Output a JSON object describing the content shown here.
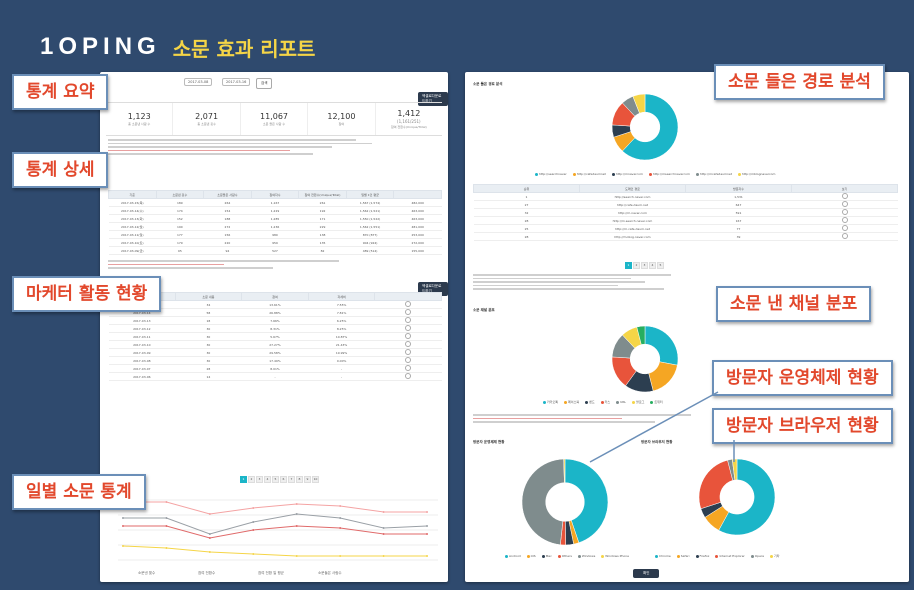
{
  "brand": {
    "logo": "1OPING",
    "subtitle": "소문 효과 리포트"
  },
  "callouts": {
    "summary": "통계 요약",
    "detail": "통계 상세",
    "marketer": "마케터 활동 현황",
    "daily": "일별 소문 통계",
    "path": "소문 들은 경로 분석",
    "channel": "소문 낸 채널 분포",
    "os": "방문자 운영체제 현황",
    "browser": "방문자 브라우저 현황"
  },
  "left": {
    "date_from": "2017-03-08",
    "date_to": "2017-03-16",
    "search_btn": "검색",
    "print_btn": "엑셀로다운로드하기",
    "stats": [
      {
        "value": "1,123",
        "label": "총 소문낸 사람 수"
      },
      {
        "value": "2,071",
        "label": "총 소문낸 횟수"
      },
      {
        "value": "11,067",
        "label": "소문 들은 사람 수"
      },
      {
        "value": "12,100",
        "label": "참여"
      },
      {
        "value": "1,412",
        "sub": "(1,161/251)",
        "label": "참여 전환수(Unique/Total)"
      }
    ],
    "detail_headers": [
      "기준",
      "소문낸 횟수",
      "소문들은 사람수",
      "참여자수",
      "참여 전환수(Unique/Total)",
      "일별 1인 평균"
    ],
    "detail_rows": [
      [
        "2017-03-15(목)",
        "189",
        "264",
        "1,167",
        "261",
        "1,567 (1,574)",
        "482,000"
      ],
      [
        "2017-03-14(수)",
        "174",
        "154",
        "1,229",
        "192",
        "1,562 (1,521)",
        "463,000"
      ],
      [
        "2017-03-13(화)",
        "152",
        "188",
        "1,285",
        "171",
        "1,550 (1,522)",
        "463,000"
      ],
      [
        "2017-03-12(월)",
        "190",
        "272",
        "1,236",
        "229",
        "1,562 (1,551)",
        "481,000"
      ],
      [
        "2017-03-11(일)",
        "177",
        "156",
        "980",
        "138",
        "870 (877)",
        "253,000"
      ],
      [
        "2017-03-10(토)",
        "179",
        "220",
        "959",
        "135",
        "904 (924)",
        "272,000"
      ],
      [
        "2017-03-09(금)",
        "95",
        "94",
        "527",
        "82",
        "489 (514)",
        "155,000"
      ]
    ],
    "marketer_headers": [
      "날짜",
      "소문 내용",
      "참여",
      "자세히",
      "보기"
    ],
    "marketer_rows": [
      [
        "2017-03-15",
        "34",
        "13.61%",
        "7.55%"
      ],
      [
        "2017-03-14",
        "58",
        "26.88%",
        "7.81%"
      ],
      [
        "2017-03-13",
        "18",
        "7.66%",
        "6.25%"
      ],
      [
        "2017-03-12",
        "30",
        "8.31%",
        "8.25%"
      ],
      [
        "2017-03-11",
        "30",
        "5.67%",
        "10.87%"
      ],
      [
        "2017-03-10",
        "30",
        "27.27%",
        "21.43%"
      ],
      [
        "2017-03-09",
        "30",
        "29.58%",
        "19.99%"
      ],
      [
        "2017-03-08",
        "30",
        "17.49%",
        "0.00%"
      ],
      [
        "2017-03-07",
        "28",
        "8.01%",
        "-"
      ],
      [
        "2017-03-06",
        "14",
        "-",
        "-"
      ]
    ],
    "line_legend": [
      "소문낸 횟수",
      "참여 전환수",
      "참여 전환 일 평균",
      "소문들은 사람수"
    ]
  },
  "right": {
    "path_title": "소문 들은 경로 분석",
    "path_headers": [
      "순위",
      "도메인 경로",
      "방문자수",
      "보기"
    ],
    "path_rows": [
      [
        "1",
        "http://search.naver.com",
        "1,531"
      ],
      [
        "27",
        "http://cafe.daum.net",
        "647"
      ],
      [
        "32",
        "http://m.naver.com",
        "591"
      ],
      [
        "28",
        "http://m.search.naver.com",
        "167"
      ],
      [
        "25",
        "http://m.cafe.daum.net",
        "77"
      ],
      [
        "28",
        "http://m.blog.naver.com",
        "39"
      ]
    ],
    "path_legend": [
      "http://searchnaver",
      "http://cafedaumnet",
      "http://mnavercom",
      "http://msearchnavercom",
      "http://mcafedaumnet",
      "http://mblognavercom"
    ],
    "channel_title": "소문 채널 분포",
    "channel_legend": [
      "카카오톡",
      "페이스북",
      "밴드",
      "카스",
      "URL",
      "블로그",
      "트위터"
    ],
    "os_title": "방문자 운영체제 현황",
    "os_legend": [
      "Android",
      "iOS",
      "Mac",
      "Others",
      "Windows",
      "Windows Phone"
    ],
    "browser_title": "방문자 브라우저 현황",
    "browser_legend": [
      "Chrome",
      "Safari",
      "Firefox",
      "Internet Explorer",
      "Opera",
      "기타"
    ],
    "footer_btn": "확인"
  },
  "colors": {
    "teal": "#1bb5c8",
    "orange": "#f5a623",
    "dark": "#2c3e50",
    "red": "#e8543b",
    "grey": "#7f8c8d",
    "yellow": "#f5d547"
  }
}
